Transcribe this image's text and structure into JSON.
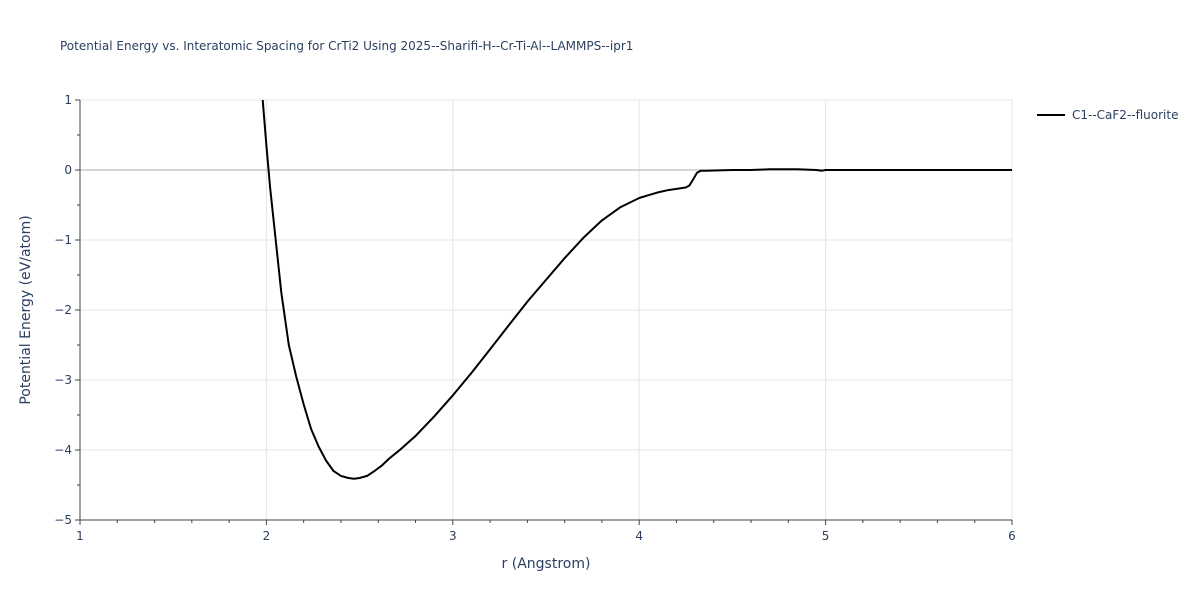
{
  "chart_data": {
    "type": "line",
    "title": "Potential Energy vs. Interatomic Spacing for CrTi2 Using 2025--Sharifi-H--Cr-Ti-Al--LAMMPS--ipr1",
    "xlabel": "r (Angstrom)",
    "ylabel": "Potential Energy (eV/atom)",
    "xlim": [
      1,
      6
    ],
    "ylim": [
      -5,
      1
    ],
    "xticks": [
      1,
      2,
      3,
      4,
      5,
      6
    ],
    "xtick_labels": [
      "1",
      "2",
      "3",
      "4",
      "5",
      "6"
    ],
    "yticks": [
      1,
      0,
      -1,
      -2,
      -3,
      -4,
      -5
    ],
    "ytick_labels": [
      "1",
      "0",
      "−1",
      "−2",
      "−3",
      "−4",
      "−5"
    ],
    "grid": true,
    "legend_position": "top-right",
    "series": [
      {
        "name": "C1--CaF2--fluorite",
        "color": "#000000",
        "x": [
          1.98,
          2.0,
          2.02,
          2.05,
          2.08,
          2.12,
          2.16,
          2.2,
          2.24,
          2.28,
          2.32,
          2.36,
          2.4,
          2.44,
          2.47,
          2.5,
          2.54,
          2.58,
          2.62,
          2.66,
          2.72,
          2.8,
          2.9,
          3.0,
          3.1,
          3.2,
          3.3,
          3.4,
          3.5,
          3.6,
          3.7,
          3.8,
          3.9,
          4.0,
          4.05,
          4.1,
          4.15,
          4.2,
          4.25,
          4.27,
          4.29,
          4.31,
          4.33,
          4.36,
          4.5,
          4.6,
          4.7,
          4.77,
          4.85,
          4.95,
          4.98,
          5.0,
          5.1,
          5.3,
          5.5,
          5.7,
          5.9,
          6.0
        ],
        "y": [
          1.0,
          0.35,
          -0.25,
          -1.0,
          -1.75,
          -2.5,
          -2.95,
          -3.35,
          -3.7,
          -3.95,
          -4.15,
          -4.3,
          -4.37,
          -4.4,
          -4.41,
          -4.4,
          -4.37,
          -4.3,
          -4.22,
          -4.12,
          -3.99,
          -3.8,
          -3.52,
          -3.22,
          -2.9,
          -2.56,
          -2.22,
          -1.88,
          -1.57,
          -1.26,
          -0.97,
          -0.72,
          -0.53,
          -0.4,
          -0.36,
          -0.32,
          -0.29,
          -0.27,
          -0.25,
          -0.22,
          -0.13,
          -0.04,
          -0.01,
          -0.01,
          0.0,
          0.0,
          0.01,
          0.01,
          0.01,
          0.0,
          -0.01,
          0.0,
          0.0,
          0.0,
          0.0,
          0.0,
          0.0,
          0.0
        ]
      }
    ]
  }
}
